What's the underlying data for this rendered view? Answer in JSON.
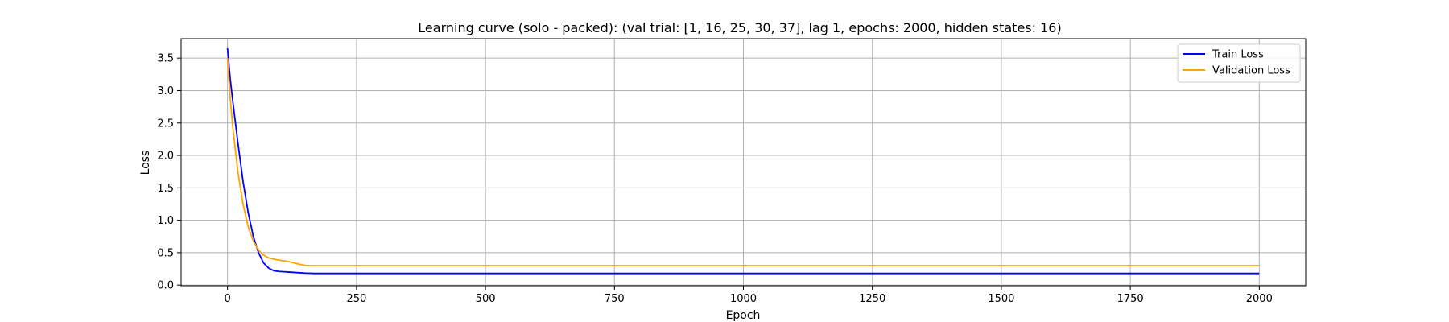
{
  "chart_data": {
    "type": "line",
    "title": "Learning curve (solo - packed): (val trial: [1, 16, 25, 30, 37], lag 1, epochs: 2000, hidden states: 16)",
    "xlabel": "Epoch",
    "ylabel": "Loss",
    "xlim": [
      -90,
      2090
    ],
    "ylim": [
      -0.01,
      3.8
    ],
    "xticks": [
      0,
      250,
      500,
      750,
      1000,
      1250,
      1500,
      1750,
      2000
    ],
    "xtick_labels": [
      "0",
      "250",
      "500",
      "750",
      "1000",
      "1250",
      "1500",
      "1750",
      "2000"
    ],
    "yticks": [
      0.0,
      0.5,
      1.0,
      1.5,
      2.0,
      2.5,
      3.0,
      3.5
    ],
    "ytick_labels": [
      "0.0",
      "0.5",
      "1.0",
      "1.5",
      "2.0",
      "2.5",
      "3.0",
      "3.5"
    ],
    "grid": true,
    "legend_position": "top-right",
    "series": [
      {
        "name": "Train Loss",
        "color": "#0000ff",
        "x": [
          0,
          5,
          10,
          20,
          30,
          40,
          50,
          60,
          70,
          80,
          90,
          100,
          120,
          150,
          170,
          200,
          250,
          500,
          750,
          1000,
          1250,
          1500,
          1750,
          2000
        ],
        "y": [
          3.65,
          3.2,
          2.85,
          2.2,
          1.6,
          1.12,
          0.75,
          0.5,
          0.34,
          0.26,
          0.22,
          0.21,
          0.2,
          0.185,
          0.18,
          0.18,
          0.18,
          0.18,
          0.18,
          0.18,
          0.18,
          0.18,
          0.18,
          0.18
        ]
      },
      {
        "name": "Validation Loss",
        "color": "#ffa500",
        "x": [
          0,
          5,
          10,
          20,
          30,
          40,
          50,
          60,
          70,
          80,
          90,
          100,
          120,
          140,
          150,
          160,
          170,
          200,
          250,
          500,
          750,
          1000,
          1250,
          1500,
          1750,
          2000
        ],
        "y": [
          3.5,
          2.9,
          2.45,
          1.75,
          1.25,
          0.9,
          0.68,
          0.54,
          0.46,
          0.42,
          0.4,
          0.385,
          0.36,
          0.32,
          0.305,
          0.3,
          0.3,
          0.3,
          0.3,
          0.3,
          0.3,
          0.3,
          0.3,
          0.3,
          0.3,
          0.3
        ]
      }
    ]
  }
}
